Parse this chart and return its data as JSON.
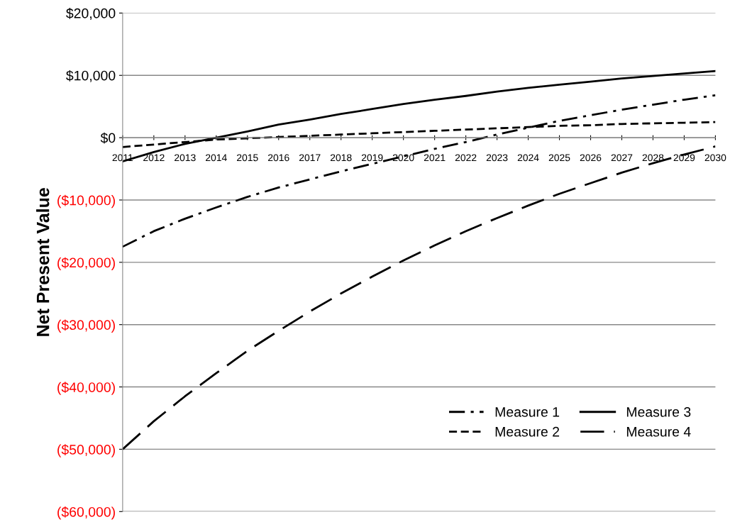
{
  "chart_data": {
    "type": "line",
    "ylabel": "Net Present Value",
    "categories": [
      "2011",
      "2012",
      "2013",
      "2014",
      "2015",
      "2016",
      "2017",
      "2018",
      "2019",
      "2020",
      "2021",
      "2022",
      "2023",
      "2024",
      "2025",
      "2026",
      "2027",
      "2028",
      "2029",
      "2030"
    ],
    "series": [
      {
        "name": "Measure 1",
        "color": "#000000",
        "line_style": "dashdot",
        "values": [
          -17500,
          -15000,
          -13000,
          -11200,
          -9500,
          -8000,
          -6700,
          -5400,
          -4200,
          -3000,
          -1800,
          -700,
          500,
          1600,
          2700,
          3600,
          4500,
          5300,
          6100,
          6800
        ]
      },
      {
        "name": "Measure 2",
        "color": "#000000",
        "line_style": "dotted",
        "values": [
          -1500,
          -1100,
          -700,
          -300,
          -100,
          100,
          300,
          500,
          700,
          900,
          1100,
          1300,
          1500,
          1700,
          1900,
          2000,
          2200,
          2300,
          2400,
          2500
        ]
      },
      {
        "name": "Measure 3",
        "color": "#000000",
        "line_style": "solid",
        "values": [
          -3800,
          -2300,
          -1000,
          0,
          1000,
          2100,
          2900,
          3800,
          4600,
          5400,
          6100,
          6700,
          7400,
          8000,
          8500,
          9000,
          9500,
          9900,
          10300,
          10700
        ]
      },
      {
        "name": "Measure 4",
        "color": "#000000",
        "line_style": "dashed",
        "values": [
          -50000,
          -45500,
          -41500,
          -37800,
          -34200,
          -31000,
          -27900,
          -25000,
          -22300,
          -19700,
          -17300,
          -15000,
          -12900,
          -10900,
          -9000,
          -7300,
          -5600,
          -4100,
          -2700,
          -1400
        ]
      }
    ],
    "ylim": [
      -60000,
      20000
    ],
    "yticks": [
      {
        "value": -60000,
        "label": "($60,000)"
      },
      {
        "value": -50000,
        "label": "($50,000)"
      },
      {
        "value": -40000,
        "label": "($40,000)"
      },
      {
        "value": -30000,
        "label": "($30,000)"
      },
      {
        "value": -20000,
        "label": "($20,000)"
      },
      {
        "value": -10000,
        "label": "($10,000)"
      },
      {
        "value": 0,
        "label": "$0"
      },
      {
        "value": 10000,
        "label": "$10,000"
      },
      {
        "value": 20000,
        "label": "$20,000"
      }
    ],
    "grid": "y",
    "legend": "bottom right",
    "marker": "none"
  }
}
